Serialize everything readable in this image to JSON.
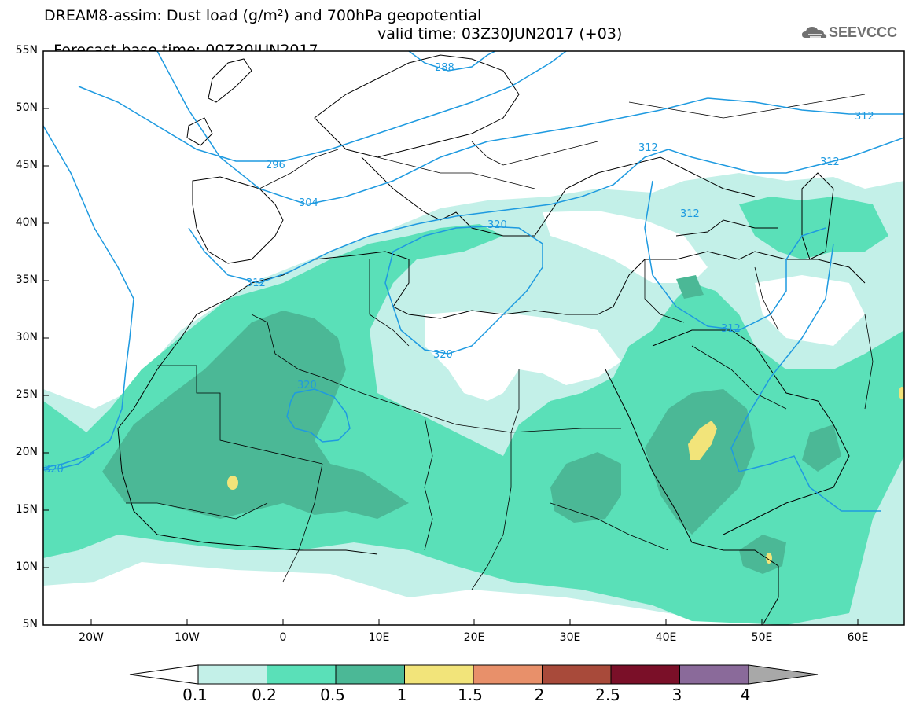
{
  "title": {
    "line1": "DREAM8-assim: Dust load (g/m²) and 700hPa geopotential",
    "line2": "Forecast base time: 00Z30JUN2017",
    "valid": "valid time: 03Z30JUN2017 (+03)"
  },
  "logo": {
    "text": "SEEVCCC",
    "icon": "cloud-logo-icon"
  },
  "axes": {
    "lat_labels": [
      "55N",
      "50N",
      "45N",
      "40N",
      "35N",
      "30N",
      "25N",
      "20N",
      "15N",
      "10N",
      "5N"
    ],
    "lon_labels": [
      "20W",
      "10W",
      "0",
      "10E",
      "20E",
      "30E",
      "40E",
      "50E",
      "60E"
    ]
  },
  "contours": {
    "labels": [
      "288",
      "296",
      "304",
      "312",
      "312",
      "312",
      "312",
      "312",
      "312",
      "320",
      "320",
      "320",
      "320"
    ]
  },
  "legend": {
    "labels": [
      "0.1",
      "0.2",
      "0.5",
      "1",
      "1.5",
      "2",
      "2.5",
      "3",
      "4"
    ],
    "colors": [
      "#c3f0e8",
      "#5ae0b8",
      "#4bb896",
      "#f2e47a",
      "#e8906a",
      "#a84a3a",
      "#7a0f28",
      "#8a6a9a",
      "#a8a8a8"
    ]
  },
  "colors": {
    "dust_light": "#c3f0e8",
    "dust_mid": "#5ae0b8",
    "dust_dark": "#4bb896",
    "dust_yellow": "#f2e47a",
    "contour": "#1e9ae0"
  }
}
